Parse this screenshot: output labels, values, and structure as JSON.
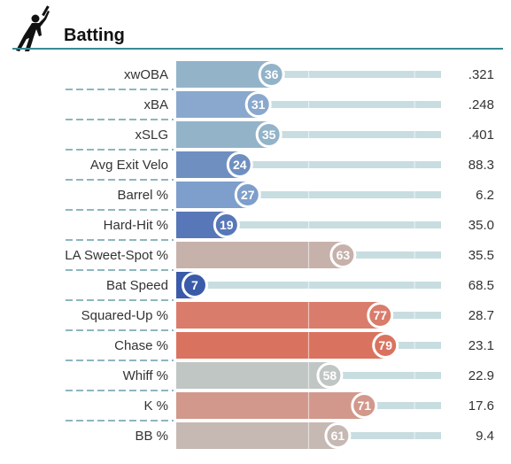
{
  "header": {
    "title": "Batting",
    "icon": "batter-silhouette-icon",
    "rule_color": "#3a8a95"
  },
  "chart_data": {
    "type": "bar",
    "orientation": "horizontal",
    "title": "Batting",
    "metric_type": "percentile",
    "xlim": [
      0,
      100
    ],
    "categories": [
      "xwOBA",
      "xBA",
      "xSLG",
      "Avg Exit Velo",
      "Barrel %",
      "Hard-Hit %",
      "LA Sweet-Spot %",
      "Bat Speed",
      "Squared-Up %",
      "Chase %",
      "Whiff %",
      "K %",
      "BB %"
    ],
    "percentiles": [
      36,
      31,
      35,
      24,
      27,
      19,
      63,
      7,
      77,
      79,
      58,
      71,
      61
    ],
    "values": [
      ".321",
      ".248",
      ".401",
      "88.3",
      "6.2",
      "35.0",
      "35.5",
      "68.5",
      "28.7",
      "23.1",
      "22.9",
      "17.6",
      "9.4"
    ],
    "colors": [
      "#93b3c9",
      "#8aa8cd",
      "#93b3c9",
      "#6f8fc1",
      "#7e9ecb",
      "#5877b8",
      "#c6b1ab",
      "#3a5ba9",
      "#d97c6b",
      "#d9735f",
      "#bfc6c4",
      "#d1988b",
      "#c6b8b3"
    ],
    "track_color": "#c8dde0",
    "divider_color": "#4a8a99"
  }
}
